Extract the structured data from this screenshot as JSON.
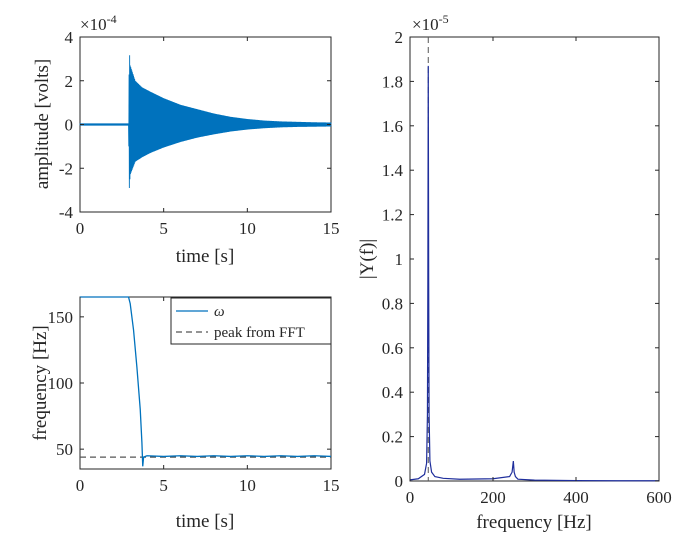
{
  "colors": {
    "signal": "#0072bd",
    "fft": "#1f2e9c",
    "dashed": "#555555",
    "axis": "#262626"
  },
  "chart_data": [
    {
      "id": "amplitude",
      "type": "line",
      "xlabel": "time [s]",
      "ylabel": "amplitude [volts]",
      "xlim": [
        0,
        15
      ],
      "ylim": [
        -4,
        4
      ],
      "xticks": [
        0,
        5,
        10,
        15
      ],
      "yticks": [
        -4,
        -2,
        0,
        2,
        4
      ],
      "ytick_labels": [
        "-4",
        "-2",
        "0",
        "2",
        "4"
      ],
      "exponent_base": "×10",
      "exponent_power": "-4",
      "series": [
        {
          "envelope_time": [
            0,
            2.9,
            2.95,
            3.0,
            3.3,
            3.7,
            4.2,
            5.0,
            6.0,
            7.0,
            8.0,
            9.0,
            10.0,
            11.0,
            12.0,
            13.0,
            14.0,
            15.0
          ],
          "envelope_upper": [
            0.05,
            0.05,
            3.4,
            2.7,
            2.0,
            1.7,
            1.5,
            1.2,
            0.9,
            0.7,
            0.5,
            0.35,
            0.25,
            0.18,
            0.14,
            0.12,
            0.1,
            0.09
          ],
          "envelope_lower": [
            -0.05,
            -0.05,
            -2.9,
            -2.3,
            -1.7,
            -1.5,
            -1.3,
            -1.05,
            -0.8,
            -0.6,
            -0.45,
            -0.32,
            -0.23,
            -0.17,
            -0.13,
            -0.11,
            -0.1,
            -0.09
          ]
        }
      ]
    },
    {
      "id": "frequency",
      "type": "line",
      "xlabel": "time [s]",
      "ylabel": "frequency [Hz]",
      "xlim": [
        0,
        15
      ],
      "ylim": [
        35,
        165
      ],
      "xticks": [
        0,
        5,
        10,
        15
      ],
      "yticks": [
        50,
        100,
        150
      ],
      "series": [
        {
          "name": "ω",
          "x": [
            0,
            2.9,
            3.0,
            3.2,
            3.4,
            3.6,
            3.7,
            3.75,
            3.8,
            4.0,
            5,
            6,
            7,
            8,
            9,
            10,
            11,
            12,
            13,
            14,
            15
          ],
          "y": [
            165,
            165,
            160,
            140,
            112,
            80,
            55,
            37,
            44,
            45,
            44.5,
            45,
            44.5,
            45,
            44.5,
            45,
            44.5,
            45,
            44.5,
            45,
            44.5
          ]
        },
        {
          "name": "peak from FFT",
          "y_constant": 44,
          "style": "dashed"
        }
      ],
      "legend": {
        "position": "top-right"
      }
    },
    {
      "id": "spectrum",
      "type": "line",
      "xlabel": "frequency [Hz]",
      "ylabel": "|Y(f)|",
      "xlim": [
        0,
        600
      ],
      "ylim": [
        0,
        2
      ],
      "xticks": [
        0,
        200,
        400,
        600
      ],
      "yticks": [
        0,
        0.2,
        0.4,
        0.6,
        0.8,
        1,
        1.2,
        1.4,
        1.6,
        1.8,
        2
      ],
      "ytick_labels": [
        "0",
        "0.2",
        "0.4",
        "0.6",
        "0.8",
        "1",
        "1.2",
        "1.4",
        "1.6",
        "1.8",
        "2"
      ],
      "exponent_base": "×10",
      "exponent_power": "-5",
      "peak_marker_x": 44,
      "series": [
        {
          "x": [
            0,
            20,
            35,
            40,
            42,
            43,
            44,
            45,
            46,
            48,
            52,
            60,
            80,
            120,
            200,
            240,
            246,
            249,
            251,
            254,
            260,
            300,
            400,
            500,
            600
          ],
          "y": [
            0.005,
            0.01,
            0.03,
            0.08,
            0.3,
            0.9,
            1.87,
            0.9,
            0.3,
            0.09,
            0.04,
            0.02,
            0.012,
            0.008,
            0.01,
            0.02,
            0.04,
            0.09,
            0.04,
            0.02,
            0.008,
            0.004,
            0.002,
            0.001,
            0.001
          ]
        }
      ]
    }
  ]
}
